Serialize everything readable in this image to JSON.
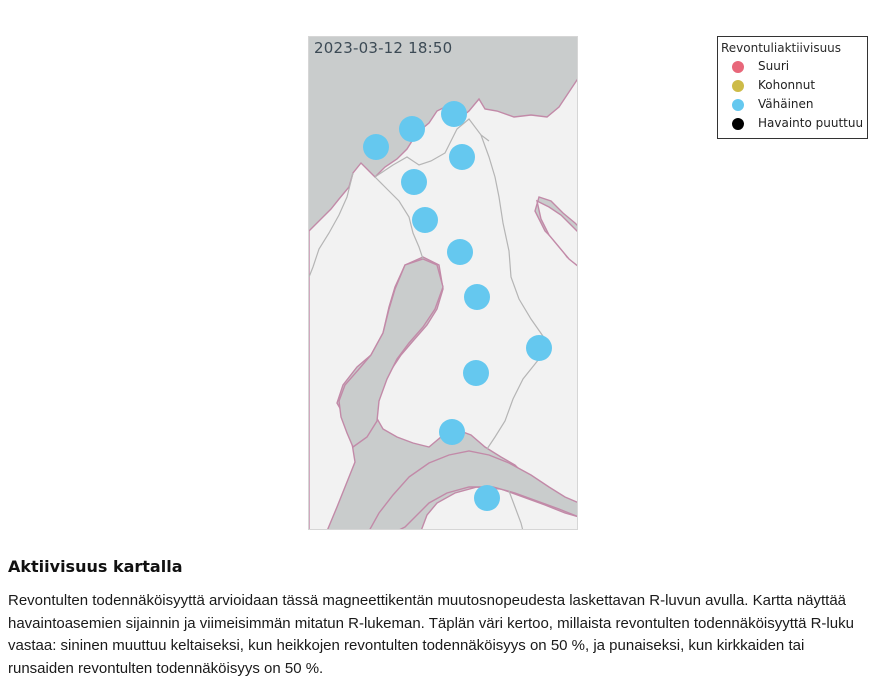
{
  "map": {
    "timestamp": "2023-03-12 18:50",
    "colors": {
      "water": "#c9cccc",
      "land": "#f2f2f2",
      "coast": "#c28aa8",
      "border": "#b5b5b5",
      "marker_low": "#65c8ef"
    },
    "stations": [
      {
        "level": "Vähäinen"
      },
      {
        "level": "Vähäinen"
      },
      {
        "level": "Vähäinen"
      },
      {
        "level": "Vähäinen"
      },
      {
        "level": "Vähäinen"
      },
      {
        "level": "Vähäinen"
      },
      {
        "level": "Vähäinen"
      },
      {
        "level": "Vähäinen"
      },
      {
        "level": "Vähäinen"
      },
      {
        "level": "Vähäinen"
      },
      {
        "level": "Vähäinen"
      },
      {
        "level": "Vähäinen"
      }
    ]
  },
  "legend": {
    "title": "Revontuliaktiivisuus",
    "items": [
      {
        "label": "Suuri",
        "color": "#e8677a"
      },
      {
        "label": "Kohonnut",
        "color": "#cdbb48"
      },
      {
        "label": "Vähäinen",
        "color": "#65c8ef"
      },
      {
        "label": "Havainto puuttuu",
        "color": "#000000"
      }
    ]
  },
  "section": {
    "title": "Aktiivisuus kartalla",
    "text": "Revontulten todennäköisyyttä arvioidaan tässä magneettikentän muutosnopeudesta laskettavan R-luvun avulla. Kartta näyttää havaintoasemien sijainnin ja viimeisimmän mitatun R-lukeman. Täplän väri kertoo, millaista revontulten todennäköisyyttä R-luku vastaa: sininen muuttuu keltaiseksi, kun heikkojen revontulten todennäköisyys on 50 %, ja punaiseksi, kun kirkkaiden tai runsaiden revontulten todennäköisyys on 50 %."
  }
}
